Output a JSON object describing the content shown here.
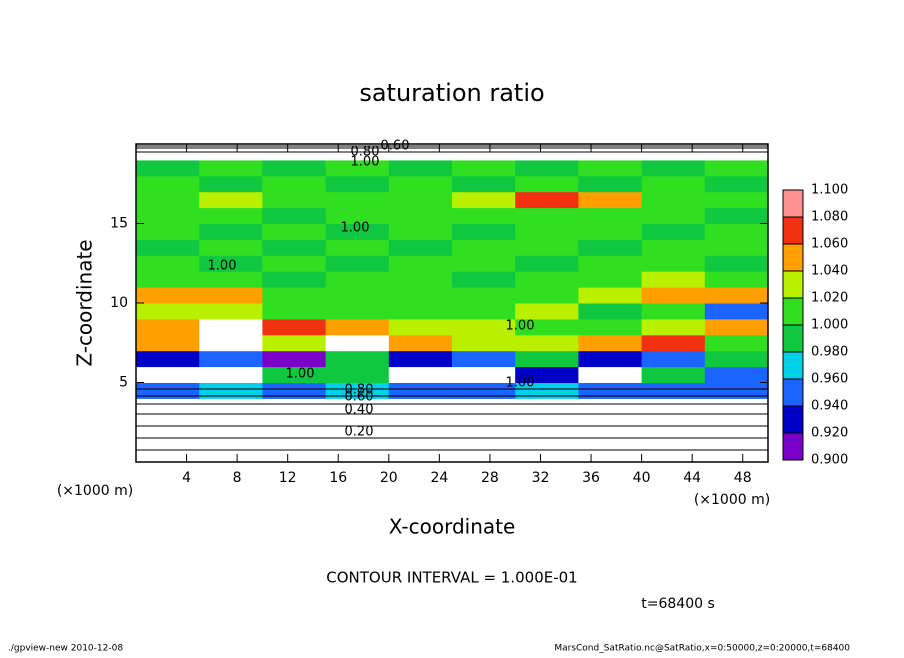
{
  "chart_data": {
    "type": "contour",
    "title": "saturation ratio",
    "xlabel": "X-coordinate",
    "ylabel": "Z-coordinate",
    "xunit": "(×1000 m)",
    "note": "CONTOUR INTERVAL = 1.000E-01",
    "time": "t=68400 s",
    "footer_left": "./gpview-new   2010-12-08",
    "footer_right": "MarsCond_SatRatio.nc@SatRatio,x=0:50000,z=0:20000,t=68400",
    "xlim": [
      0,
      50
    ],
    "ylim": [
      0,
      20
    ],
    "xticks": [
      4,
      8,
      12,
      16,
      20,
      24,
      28,
      32,
      36,
      40,
      44,
      48
    ],
    "yticks": [
      5,
      10,
      15
    ],
    "x": [
      2.5,
      7.5,
      12.5,
      17.5,
      22.5,
      27.5,
      32.5,
      37.5,
      42.5,
      47.5
    ],
    "z": [
      0.5,
      1.5,
      2.5,
      3.5,
      4.5,
      5.5,
      6.5,
      7.5,
      8.5,
      9.5,
      10.5,
      11.5,
      12.5,
      13.5,
      14.5,
      15.5,
      16.5,
      17.5,
      18.5,
      19.5
    ],
    "values": [
      [
        0.15,
        0.15,
        0.15,
        0.15,
        0.15,
        0.15,
        0.15,
        0.15,
        0.15,
        0.15
      ],
      [
        0.3,
        0.3,
        0.3,
        0.3,
        0.3,
        0.3,
        0.3,
        0.3,
        0.3,
        0.3
      ],
      [
        0.5,
        0.5,
        0.5,
        0.5,
        0.5,
        0.5,
        0.5,
        0.5,
        0.5,
        0.5
      ],
      [
        0.75,
        0.75,
        0.75,
        0.75,
        0.75,
        0.75,
        0.75,
        0.75,
        0.75,
        0.75
      ],
      [
        0.95,
        0.97,
        0.95,
        0.97,
        0.96,
        0.95,
        0.97,
        0.95,
        0.96,
        0.95
      ],
      [
        1.12,
        1.12,
        1.0,
        1.0,
        1.12,
        1.12,
        0.94,
        1.12,
        1.0,
        0.95
      ],
      [
        0.93,
        0.95,
        0.92,
        0.99,
        0.93,
        0.96,
        1.0,
        0.94,
        0.95,
        1.0
      ],
      [
        1.05,
        1.12,
        1.04,
        1.12,
        1.06,
        1.03,
        1.04,
        1.05,
        1.08,
        1.02
      ],
      [
        1.06,
        1.12,
        1.07,
        1.05,
        1.04,
        1.03,
        1.02,
        1.02,
        1.04,
        1.06
      ],
      [
        1.03,
        1.04,
        1.02,
        1.01,
        1.01,
        1.02,
        1.03,
        1.0,
        1.01,
        0.95
      ],
      [
        1.06,
        1.05,
        1.02,
        1.01,
        1.02,
        1.01,
        1.02,
        1.04,
        1.05,
        1.06
      ],
      [
        1.01,
        1.01,
        1.0,
        1.02,
        1.01,
        1.0,
        1.01,
        1.02,
        1.03,
        1.01
      ],
      [
        1.01,
        1.0,
        1.01,
        1.0,
        1.01,
        1.01,
        1.0,
        1.01,
        1.01,
        1.0
      ],
      [
        1.0,
        1.01,
        1.0,
        1.01,
        1.0,
        1.01,
        1.01,
        1.0,
        1.01,
        1.01
      ],
      [
        1.01,
        1.0,
        1.01,
        1.0,
        1.01,
        1.0,
        1.01,
        1.01,
        1.0,
        1.01
      ],
      [
        1.01,
        1.01,
        1.0,
        1.01,
        1.01,
        1.02,
        1.01,
        1.01,
        1.01,
        1.0
      ],
      [
        1.02,
        1.04,
        1.02,
        1.01,
        1.02,
        1.04,
        1.07,
        1.06,
        1.02,
        1.01
      ],
      [
        1.01,
        1.0,
        1.01,
        1.0,
        1.01,
        1.0,
        1.01,
        1.0,
        1.01,
        1.0
      ],
      [
        1.0,
        1.01,
        1.0,
        1.01,
        1.0,
        1.01,
        1.0,
        1.01,
        1.0,
        1.01
      ],
      [
        0.6,
        0.6,
        0.6,
        0.6,
        0.6,
        0.6,
        0.6,
        0.6,
        0.6,
        0.6
      ]
    ],
    "levels": [
      {
        "value": 0.9,
        "label": "0.900"
      },
      {
        "value": 0.92,
        "label": "0.920"
      },
      {
        "value": 0.94,
        "label": "0.940"
      },
      {
        "value": 0.96,
        "label": "0.960"
      },
      {
        "value": 0.98,
        "label": "0.980"
      },
      {
        "value": 1.0,
        "label": "1.000"
      },
      {
        "value": 1.02,
        "label": "1.020"
      },
      {
        "value": 1.04,
        "label": "1.040"
      },
      {
        "value": 1.06,
        "label": "1.060"
      },
      {
        "value": 1.08,
        "label": "1.080"
      },
      {
        "value": 1.1,
        "label": "1.100"
      }
    ],
    "colors": [
      "#7a00c8",
      "#0000c8",
      "#1c64ff",
      "#00d0e8",
      "#10c840",
      "#30e020",
      "#b8f000",
      "#ffa000",
      "#f03010",
      "#ff9090"
    ],
    "contour_labels": [
      "0.20",
      "0.40",
      "0.60",
      "0.80",
      "1.00",
      "1.00",
      "1.00",
      "1.00",
      "1.00",
      "0.60",
      "0.80",
      "1.00"
    ]
  }
}
